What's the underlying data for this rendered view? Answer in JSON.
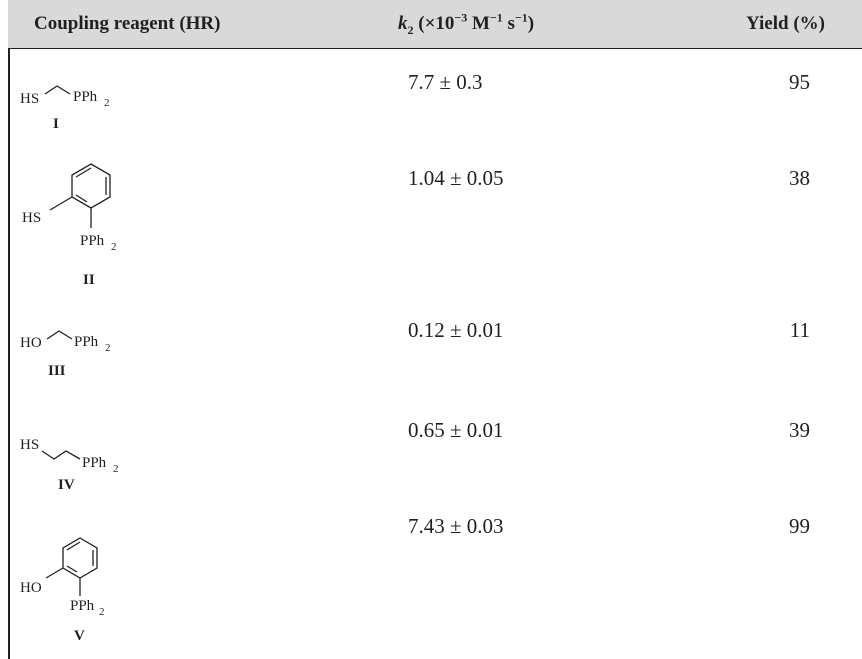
{
  "table": {
    "headers": {
      "reagent": "Coupling reagent (HR)",
      "k2_symbol": "k",
      "k2_sub": "2",
      "k2_units_open": " (×10",
      "k2_exp1": "−3",
      "k2_units_mid": " M",
      "k2_exp2": "−1",
      "k2_units_end": " s",
      "k2_exp3": "−1",
      "k2_close": ")",
      "yield": "Yield (%)"
    },
    "rows": [
      {
        "id": "I",
        "left_group": "HS",
        "right_group": "PPh",
        "sub": "2",
        "k2": "7.7 ± 0.3",
        "yield": "95"
      },
      {
        "id": "II",
        "left_group": "HS",
        "right_group": "PPh",
        "sub": "2",
        "k2": "1.04 ± 0.05",
        "yield": "38"
      },
      {
        "id": "III",
        "left_group": "HO",
        "right_group": "PPh",
        "sub": "2",
        "k2": "0.12 ± 0.01",
        "yield": "11"
      },
      {
        "id": "IV",
        "left_group": "HS",
        "right_group": "PPh",
        "sub": "2",
        "k2": "0.65 ± 0.01",
        "yield": "39"
      },
      {
        "id": "V",
        "left_group": "HO",
        "right_group": "PPh",
        "sub": "2",
        "k2": "7.43 ± 0.03",
        "yield": "99"
      }
    ]
  }
}
